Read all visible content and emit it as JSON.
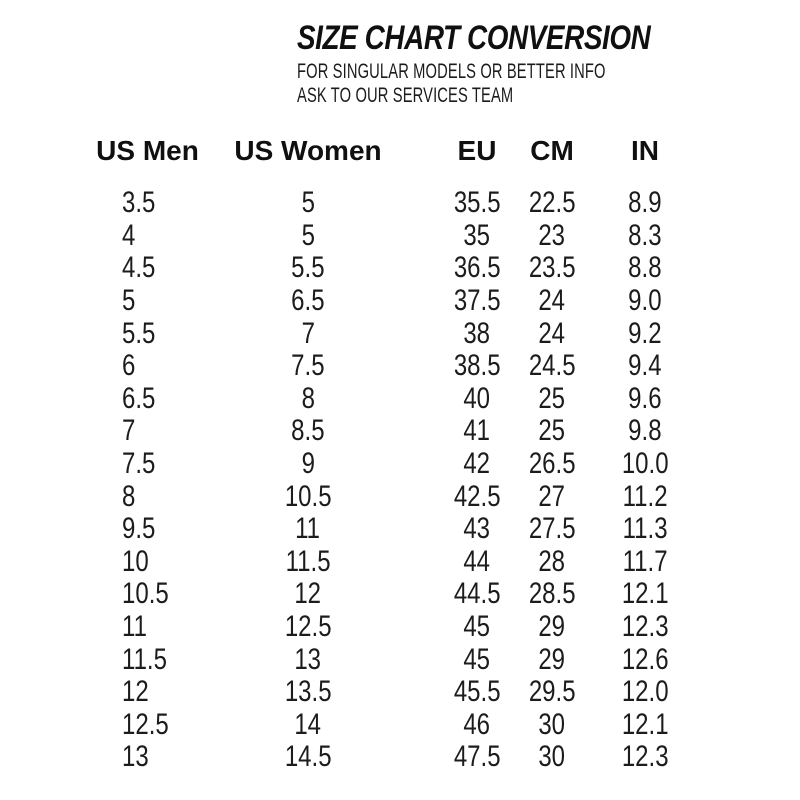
{
  "header": {
    "title": "SIZE CHART CONVERSION",
    "subtitle_line1": "FOR SINGULAR MODELS OR BETTER INFO",
    "subtitle_line2": "ASK TO OUR SERVICES TEAM"
  },
  "colors": {
    "background": "#ffffff",
    "text": "#141414"
  },
  "chart_data": {
    "type": "table",
    "title": "SIZE CHART CONVERSION",
    "columns": [
      "US Men",
      "US Women",
      "EU",
      "CM",
      "IN"
    ],
    "rows": [
      [
        "3.5",
        "5",
        "35.5",
        "22.5",
        "8.9"
      ],
      [
        "4",
        "5",
        "35",
        "23",
        "8.3"
      ],
      [
        "4.5",
        "5.5",
        "36.5",
        "23.5",
        "8.8"
      ],
      [
        "5",
        "6.5",
        "37.5",
        "24",
        "9.0"
      ],
      [
        "5.5",
        "7",
        "38",
        "24",
        "9.2"
      ],
      [
        "6",
        "7.5",
        "38.5",
        "24.5",
        "9.4"
      ],
      [
        "6.5",
        "8",
        "40",
        "25",
        "9.6"
      ],
      [
        "7",
        "8.5",
        "41",
        "25",
        "9.8"
      ],
      [
        "7.5",
        "9",
        "42",
        "26.5",
        "10.0"
      ],
      [
        "8",
        "10.5",
        "42.5",
        "27",
        "11.2"
      ],
      [
        "9.5",
        "11",
        "43",
        "27.5",
        "11.3"
      ],
      [
        "10",
        "11.5",
        "44",
        "28",
        "11.7"
      ],
      [
        "10.5",
        "12",
        "44.5",
        "28.5",
        "12.1"
      ],
      [
        "11",
        "12.5",
        "45",
        "29",
        "12.3"
      ],
      [
        "11.5",
        "13",
        "45",
        "29",
        "12.6"
      ],
      [
        "12",
        "13.5",
        "45.5",
        "29.5",
        "12.0"
      ],
      [
        "12.5",
        "14",
        "46",
        "30",
        "12.1"
      ],
      [
        "13",
        "14.5",
        "47.5",
        "30",
        "12.3"
      ]
    ]
  }
}
